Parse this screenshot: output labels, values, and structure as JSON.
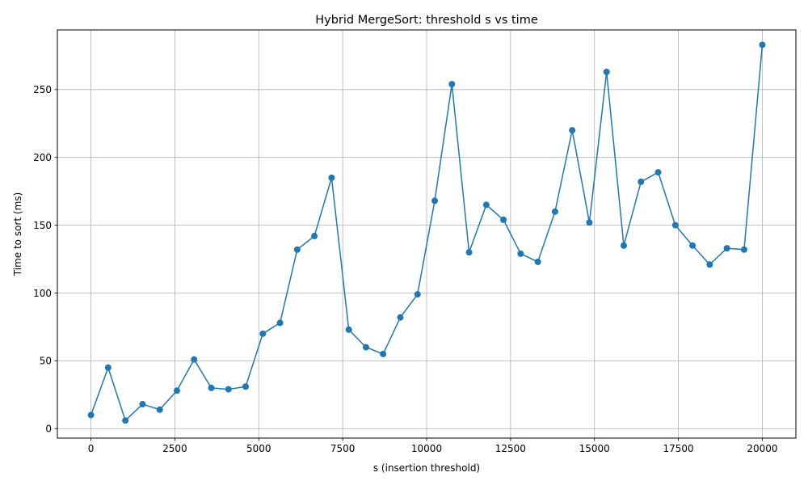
{
  "chart_data": {
    "type": "line",
    "title": "Hybrid MergeSort: threshold s vs time",
    "xlabel": "s (insertion threshold)",
    "ylabel": "Time to sort (ms)",
    "xlim": [
      -1000,
      21000
    ],
    "ylim": [
      -7,
      294
    ],
    "xticks": [
      0,
      2500,
      5000,
      7500,
      10000,
      12500,
      15000,
      17500,
      20000
    ],
    "yticks": [
      0,
      50,
      100,
      150,
      200,
      250
    ],
    "grid": true,
    "markers": true,
    "color": "#1f77b4",
    "series": [
      {
        "x": [
          1,
          513,
          1025,
          1537,
          2049,
          2561,
          3073,
          3585,
          4097,
          4609,
          5121,
          5633,
          6145,
          6657,
          7169,
          7681,
          8193,
          8705,
          9217,
          9729,
          10241,
          10753,
          11265,
          11777,
          12289,
          12801,
          13313,
          13825,
          14337,
          14849,
          15361,
          15873,
          16385,
          16897,
          17409,
          17921,
          18433,
          18945,
          19457,
          20000
        ],
        "y": [
          10,
          45,
          6,
          18,
          14,
          28,
          51,
          30,
          29,
          31,
          70,
          78,
          132,
          142,
          185,
          73,
          60,
          55,
          82,
          99,
          168,
          254,
          130,
          165,
          154,
          129,
          123,
          160,
          220,
          152,
          263,
          135,
          182,
          189,
          150,
          135,
          121,
          133,
          132,
          283
        ]
      }
    ]
  }
}
